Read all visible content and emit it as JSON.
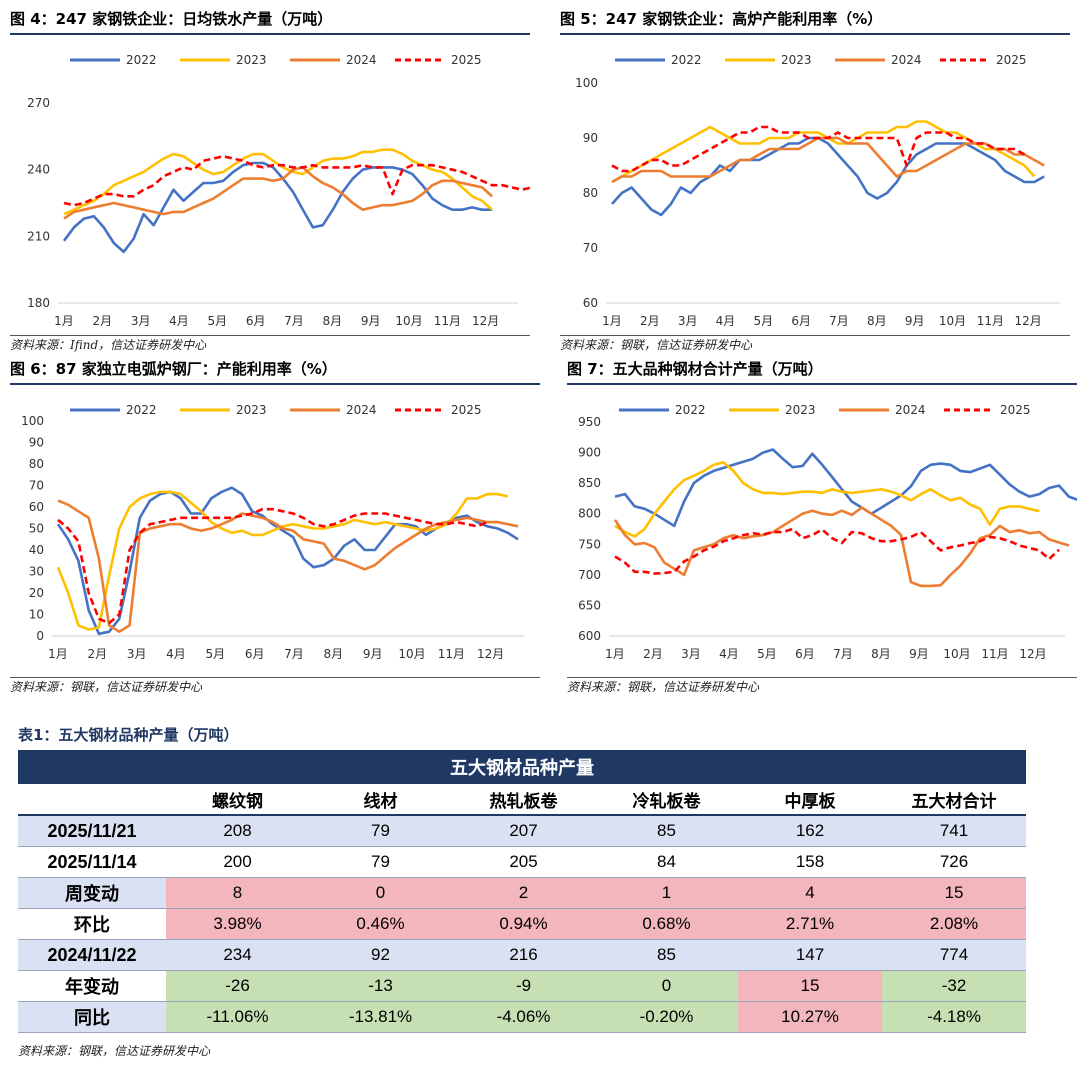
{
  "colors": {
    "s2022": "#4472c4",
    "s2023": "#ffc000",
    "s2024": "#ed7d31",
    "s2025": "#ff0000"
  },
  "months": [
    "1月",
    "2月",
    "3月",
    "4月",
    "5月",
    "6月",
    "7月",
    "8月",
    "9月",
    "10月",
    "11月",
    "12月"
  ],
  "chart_data": [
    {
      "id": "c4",
      "type": "line",
      "title": "图 4：247 家钢铁企业：日均铁水产量（万吨）",
      "source": "资料来源：Ifind，信达证券研发中心",
      "ylim": [
        180,
        270
      ],
      "yticks": [
        180,
        210,
        240,
        270
      ],
      "series": [
        {
          "name": "2022",
          "values": [
            208,
            214,
            218,
            219,
            214,
            207,
            203,
            209,
            220,
            215,
            223,
            231,
            226,
            230,
            234,
            234,
            235,
            239,
            242,
            243,
            243,
            241,
            236,
            230,
            222,
            214,
            215,
            222,
            230,
            236,
            240,
            241,
            241,
            241,
            240,
            238,
            233,
            227,
            224,
            222,
            222,
            223,
            222,
            222
          ]
        },
        {
          "name": "2023",
          "values": [
            220,
            222,
            224,
            226,
            229,
            233,
            235,
            237,
            239,
            242,
            245,
            247,
            246,
            243,
            240,
            238,
            239,
            242,
            245,
            247,
            247,
            244,
            241,
            239,
            238,
            241,
            244,
            245,
            245,
            246,
            248,
            248,
            249,
            249,
            247,
            244,
            242,
            240,
            239,
            236,
            232,
            228,
            226,
            222
          ]
        },
        {
          "name": "2024",
          "values": [
            218,
            221,
            222,
            223,
            224,
            225,
            224,
            223,
            222,
            221,
            220,
            221,
            221,
            223,
            225,
            227,
            230,
            233,
            236,
            236,
            236,
            235,
            236,
            240,
            241,
            237,
            234,
            232,
            229,
            225,
            222,
            223,
            224,
            224,
            225,
            226,
            229,
            233,
            235,
            235,
            234,
            233,
            232,
            228
          ]
        },
        {
          "name": "2025",
          "values": [
            225,
            224,
            225,
            227,
            229,
            229,
            228,
            228,
            231,
            233,
            237,
            239,
            241,
            240,
            244,
            245,
            246,
            245,
            244,
            242,
            241,
            242,
            242,
            241,
            241,
            242,
            241,
            241,
            241,
            241,
            242,
            241,
            241,
            229,
            240,
            242,
            242,
            242,
            241,
            240,
            239,
            237,
            235,
            233,
            233,
            232,
            231,
            232,
            234
          ]
        }
      ]
    },
    {
      "id": "c5",
      "type": "line",
      "title": "图 5：247 家钢铁企业：高炉产能利用率（%）",
      "source": "资料来源：钢联，信达证券研发中心",
      "ylim": [
        60,
        100
      ],
      "yticks": [
        60,
        70,
        80,
        90,
        100
      ],
      "series": [
        {
          "name": "2022",
          "values": [
            78,
            80,
            81,
            79,
            77,
            76,
            78,
            81,
            80,
            82,
            83,
            85,
            84,
            86,
            86,
            86,
            87,
            88,
            89,
            89,
            90,
            90,
            89,
            87,
            85,
            83,
            80,
            79,
            80,
            82,
            85,
            87,
            88,
            89,
            89,
            89,
            89,
            88,
            87,
            86,
            84,
            83,
            82,
            82,
            83
          ]
        },
        {
          "name": "2023",
          "values": [
            82,
            83,
            84,
            85,
            86,
            87,
            88,
            89,
            90,
            91,
            92,
            91,
            90,
            89,
            89,
            89,
            90,
            90,
            90,
            91,
            91,
            91,
            90,
            89,
            89,
            90,
            91,
            91,
            91,
            92,
            92,
            93,
            93,
            92,
            91,
            91,
            90,
            89,
            88,
            88,
            87,
            86,
            85,
            83
          ]
        },
        {
          "name": "2024",
          "values": [
            82,
            83,
            83,
            84,
            84,
            84,
            83,
            83,
            83,
            83,
            83,
            84,
            85,
            86,
            86,
            87,
            88,
            88,
            88,
            88,
            89,
            90,
            90,
            90,
            89,
            89,
            89,
            87,
            85,
            83,
            84,
            84,
            85,
            86,
            87,
            88,
            89,
            89,
            89,
            88,
            88,
            87,
            87,
            86,
            85
          ]
        },
        {
          "name": "2025",
          "values": [
            85,
            84,
            84,
            85,
            86,
            86,
            85,
            85,
            86,
            87,
            88,
            89,
            90,
            91,
            91,
            92,
            92,
            91,
            91,
            91,
            90,
            90,
            90,
            91,
            90,
            90,
            90,
            90,
            90,
            90,
            85,
            90,
            91,
            91,
            91,
            90,
            90,
            89,
            89,
            88,
            88,
            88,
            87
          ]
        }
      ]
    },
    {
      "id": "c6",
      "type": "line",
      "title": "图 6：87 家独立电弧炉钢厂：产能利用率（%）",
      "source": "资料来源：钢联，信达证券研发中心",
      "ylim": [
        0,
        100
      ],
      "yticks": [
        0,
        10,
        20,
        30,
        40,
        50,
        60,
        70,
        80,
        90,
        100
      ],
      "series": [
        {
          "name": "2022",
          "values": [
            52,
            45,
            35,
            12,
            1,
            2,
            8,
            30,
            55,
            63,
            66,
            67,
            64,
            57,
            57,
            64,
            67,
            69,
            66,
            58,
            56,
            52,
            49,
            46,
            36,
            32,
            33,
            36,
            42,
            45,
            40,
            40,
            46,
            52,
            52,
            51,
            47,
            50,
            52,
            55,
            56,
            53,
            51,
            50,
            48,
            45
          ]
        },
        {
          "name": "2023",
          "values": [
            32,
            20,
            5,
            3,
            4,
            28,
            50,
            60,
            64,
            66,
            67,
            67,
            66,
            62,
            58,
            53,
            50,
            48,
            49,
            47,
            47,
            49,
            51,
            52,
            51,
            50,
            50,
            51,
            52,
            54,
            53,
            52,
            53,
            52,
            51,
            50,
            49,
            50,
            52,
            57,
            64,
            64,
            66,
            66,
            65
          ]
        },
        {
          "name": "2024",
          "values": [
            63,
            61,
            58,
            55,
            36,
            5,
            2,
            5,
            48,
            50,
            51,
            52,
            52,
            50,
            49,
            50,
            52,
            54,
            57,
            56,
            55,
            53,
            50,
            49,
            45,
            44,
            43,
            36,
            35,
            33,
            31,
            33,
            37,
            41,
            44,
            47,
            50,
            52,
            53,
            54,
            55,
            54,
            53,
            53,
            52,
            51
          ]
        },
        {
          "name": "2025",
          "values": [
            54,
            50,
            44,
            20,
            8,
            6,
            10,
            40,
            48,
            52,
            53,
            54,
            55,
            55,
            55,
            55,
            55,
            55,
            56,
            57,
            59,
            59,
            58,
            57,
            55,
            52,
            51,
            52,
            54,
            56,
            57,
            57,
            57,
            56,
            55,
            54,
            53,
            52,
            52,
            53,
            52,
            51,
            53
          ]
        }
      ]
    },
    {
      "id": "c7",
      "type": "line",
      "title": "图 7：五大品种钢材合计产量（万吨）",
      "source": "资料来源：钢联，信达证券研发中心",
      "ylim": [
        600,
        950
      ],
      "yticks": [
        600,
        650,
        700,
        750,
        800,
        850,
        900,
        950
      ],
      "series": [
        {
          "name": "2022",
          "values": [
            828,
            832,
            812,
            808,
            800,
            790,
            780,
            820,
            850,
            862,
            870,
            875,
            880,
            885,
            890,
            900,
            905,
            890,
            876,
            878,
            898,
            880,
            860,
            840,
            820,
            810,
            800,
            810,
            820,
            830,
            845,
            870,
            880,
            882,
            880,
            870,
            868,
            874,
            880,
            864,
            848,
            836,
            828,
            832,
            842,
            846,
            828,
            822
          ]
        },
        {
          "name": "2023",
          "values": [
            780,
            770,
            763,
            775,
            800,
            820,
            840,
            855,
            862,
            870,
            880,
            884,
            870,
            850,
            840,
            834,
            834,
            832,
            834,
            836,
            836,
            834,
            840,
            836,
            834,
            836,
            838,
            840,
            836,
            830,
            822,
            832,
            840,
            830,
            822,
            826,
            815,
            808,
            782,
            808,
            812,
            812,
            808,
            804
          ]
        },
        {
          "name": "2024",
          "values": [
            790,
            765,
            750,
            752,
            745,
            720,
            710,
            700,
            740,
            745,
            750,
            760,
            765,
            760,
            763,
            765,
            770,
            780,
            790,
            800,
            805,
            800,
            798,
            805,
            798,
            810,
            800,
            790,
            780,
            765,
            688,
            682,
            682,
            683,
            700,
            715,
            735,
            760,
            765,
            780,
            770,
            773,
            768,
            770,
            758,
            753,
            748
          ]
        },
        {
          "name": "2025",
          "values": [
            730,
            720,
            705,
            705,
            702,
            703,
            705,
            722,
            730,
            740,
            746,
            755,
            760,
            765,
            768,
            766,
            770,
            770,
            775,
            760,
            765,
            774,
            760,
            752,
            770,
            768,
            760,
            755,
            755,
            758,
            762,
            770,
            755,
            740,
            745,
            748,
            752,
            755,
            762,
            760,
            755,
            748,
            744,
            740,
            726,
            741
          ]
        }
      ]
    }
  ],
  "table": {
    "title": "表1：五大钢材品种产量（万吨）",
    "header": "五大钢材品种产量",
    "columns": [
      "",
      "螺纹钢",
      "线材",
      "热轧板卷",
      "冷轧板卷",
      "中厚板",
      "五大材合计"
    ],
    "rows": [
      {
        "label": "2025/11/21",
        "cells": [
          "208",
          "79",
          "207",
          "85",
          "162",
          "741"
        ]
      },
      {
        "label": "2025/11/14",
        "cells": [
          "200",
          "79",
          "205",
          "84",
          "158",
          "726"
        ]
      },
      {
        "label": "周变动",
        "cells": [
          "8",
          "0",
          "2",
          "1",
          "4",
          "15"
        ]
      },
      {
        "label": "环比",
        "cells": [
          "3.98%",
          "0.46%",
          "0.94%",
          "0.68%",
          "2.71%",
          "2.08%"
        ]
      },
      {
        "label": "2024/11/22",
        "cells": [
          "234",
          "92",
          "216",
          "85",
          "147",
          "774"
        ]
      },
      {
        "label": "年变动",
        "cells": [
          "-26",
          "-13",
          "-9",
          "0",
          "15",
          "-32"
        ]
      },
      {
        "label": "同比",
        "cells": [
          "-11.06%",
          "-13.81%",
          "-4.06%",
          "-0.20%",
          "10.27%",
          "-4.18%"
        ]
      }
    ],
    "source": "资料来源：钢联，信达证券研发中心"
  }
}
